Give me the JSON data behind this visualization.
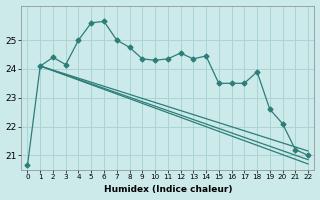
{
  "xlabel": "Humidex (Indice chaleur)",
  "bg_color": "#cceaea",
  "grid_color": "#aad4d4",
  "line_color": "#2d7d78",
  "marker": "D",
  "markersize": 2.5,
  "xlim": [
    -0.5,
    22.5
  ],
  "ylim": [
    20.5,
    26.2
  ],
  "yticks": [
    21,
    22,
    23,
    24,
    25
  ],
  "xticks": [
    0,
    1,
    2,
    3,
    4,
    5,
    6,
    7,
    8,
    9,
    10,
    11,
    12,
    13,
    14,
    15,
    16,
    17,
    18,
    19,
    20,
    21,
    22
  ],
  "series1_x": [
    0,
    1,
    2,
    3,
    4,
    5,
    6,
    7,
    8,
    9,
    10,
    11,
    12,
    13,
    14,
    15,
    16,
    17,
    18,
    19,
    20,
    21,
    22
  ],
  "series1_y": [
    20.65,
    24.1,
    24.4,
    24.15,
    25.0,
    25.6,
    25.65,
    25.0,
    24.75,
    24.35,
    24.3,
    24.35,
    24.55,
    24.35,
    24.45,
    23.5,
    23.5,
    23.5,
    23.9,
    22.6,
    22.1,
    21.2,
    21.0
  ],
  "line2_x0": 1,
  "line2_y0": 24.1,
  "line2_x1": 22,
  "line2_y1": 21.15,
  "line3_x0": 1,
  "line3_y0": 24.1,
  "line3_x1": 22,
  "line3_y1": 20.85,
  "line4_x0": 1,
  "line4_y0": 24.1,
  "line4_x1": 22,
  "line4_y1": 20.7
}
